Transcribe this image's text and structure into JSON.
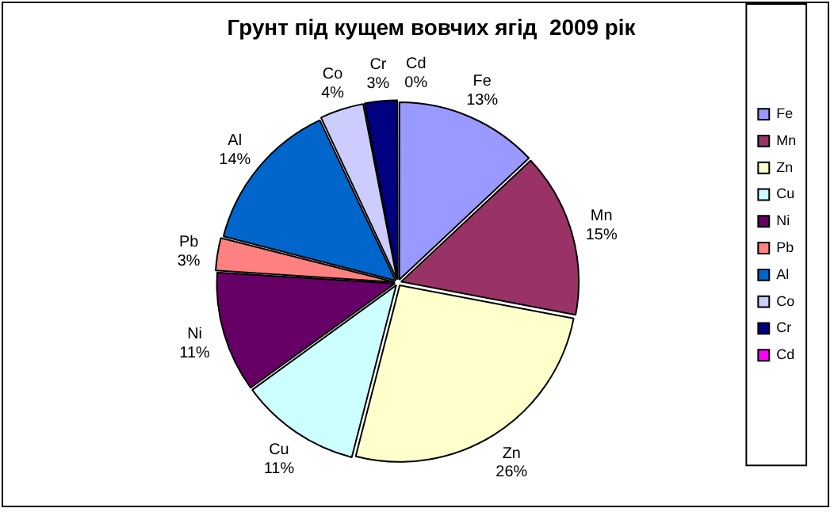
{
  "chart_data": {
    "type": "pie",
    "title": "Грунт під кущем вовчих ягід  2009 рік",
    "categories": [
      "Fe",
      "Mn",
      "Zn",
      "Cu",
      "Ni",
      "Pb",
      "Al",
      "Co",
      "Cr",
      "Cd"
    ],
    "values": [
      13,
      15,
      26,
      11,
      11,
      3,
      14,
      4,
      3,
      0
    ],
    "value_labels": [
      "13%",
      "15%",
      "26%",
      "11%",
      "11%",
      "3%",
      "14%",
      "4%",
      "3%",
      "0%"
    ],
    "colors": [
      "#9999ff",
      "#993366",
      "#ffffcc",
      "#ccffff",
      "#660066",
      "#ff8080",
      "#0066cc",
      "#ccccff",
      "#000080",
      "#ff00ff"
    ],
    "legend": "right"
  }
}
